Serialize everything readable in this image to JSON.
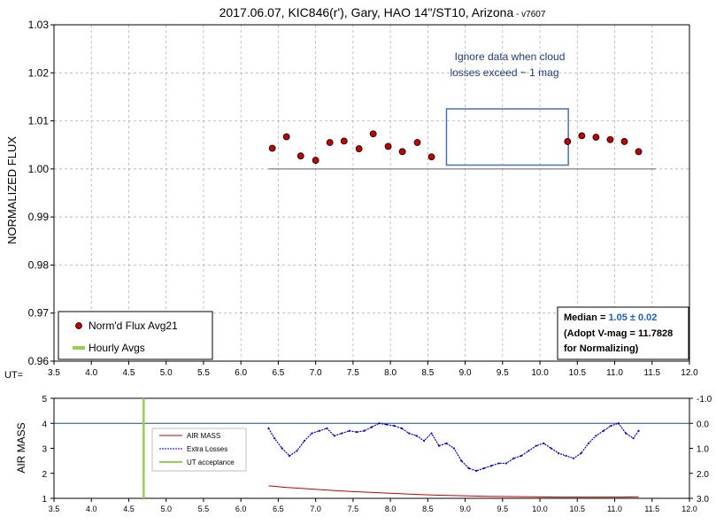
{
  "chart_data": [
    {
      "type": "scatter",
      "title": "2017.06.07, KIC846(r'), Gary, HAO 14\"/ST10, Arizona",
      "title_suffix": " - v7607",
      "ylabel": "NORMALIZED FLUX",
      "xlabel_prefix": "UT=",
      "xlim": [
        3.5,
        12.0
      ],
      "ylim": [
        0.96,
        1.03
      ],
      "x_ticks": [
        "3.5",
        "4.0",
        "4.5",
        "5.0",
        "5.5",
        "6.0",
        "6.5",
        "7.0",
        "7.5",
        "8.0",
        "8.5",
        "9.0",
        "9.5",
        "10.0",
        "10.5",
        "11.0",
        "11.5",
        "12.0"
      ],
      "y_ticks": [
        "0.96",
        "0.97",
        "0.98",
        "0.99",
        "1.00",
        "1.01",
        "1.02",
        "1.03"
      ],
      "grid": true,
      "reference_line": 1.0,
      "series": [
        {
          "name": "Norm'd Flux Avg21",
          "color": "#c00000",
          "x": [
            6.42,
            6.61,
            6.8,
            7.0,
            7.19,
            7.38,
            7.58,
            7.77,
            7.97,
            8.16,
            8.36,
            8.55,
            10.37,
            10.56,
            10.75,
            10.94,
            11.13,
            11.32
          ],
          "y": [
            1.0043,
            1.0067,
            1.0027,
            1.0018,
            1.0055,
            1.0058,
            1.0042,
            1.0073,
            1.0047,
            1.0036,
            1.0055,
            1.0025,
            1.0057,
            1.0069,
            1.0066,
            1.0061,
            1.0057,
            1.0036
          ]
        },
        {
          "name": "Hourly Avgs",
          "color": "#92d050",
          "x": [],
          "y": []
        }
      ],
      "legend": "bottom-left",
      "annotation": {
        "line1": "Ignore data when cloud",
        "line2": "losses exceed ~ 1 mag",
        "box_x": [
          8.75,
          10.38
        ],
        "box_y": [
          1.0008,
          1.0125
        ]
      },
      "info_box": {
        "median_label": "Median = ",
        "median_value": "1.05 ± 0.02",
        "line2": "(Adopt V-mag = 11.7828",
        "line3": " for Normalizing)"
      }
    },
    {
      "type": "line",
      "ylabel": "AIR MASS",
      "xlim": [
        3.5,
        12.0
      ],
      "ylim": [
        1,
        5
      ],
      "y2lim": [
        3.0,
        -1.0
      ],
      "x_ticks": [
        "3.5",
        "4.0",
        "4.5",
        "5.0",
        "5.5",
        "6.0",
        "6.5",
        "7.0",
        "7.5",
        "8.0",
        "8.5",
        "9.0",
        "9.5",
        "10.0",
        "10.5",
        "11.0",
        "11.5",
        "12.0"
      ],
      "y_ticks": [
        "1",
        "2",
        "3",
        "4",
        "5"
      ],
      "y2_ticks": [
        "3.0",
        "2.0",
        "1.0",
        "0.0",
        "-1.0"
      ],
      "reference_line_y2": 0.0,
      "legend": "top-left",
      "series": [
        {
          "name": "AIR MASS",
          "color": "#c00000",
          "x": [
            6.37,
            6.6,
            6.9,
            7.2,
            7.5,
            7.8,
            8.1,
            8.4,
            8.7,
            9.0,
            9.3,
            9.6,
            9.9,
            10.2,
            10.5,
            10.8,
            11.1,
            11.32
          ],
          "y": [
            1.5,
            1.44,
            1.38,
            1.32,
            1.27,
            1.23,
            1.19,
            1.15,
            1.12,
            1.1,
            1.08,
            1.07,
            1.06,
            1.05,
            1.05,
            1.05,
            1.05,
            1.06
          ]
        },
        {
          "name": "Extra Losses",
          "color": "#0000cc",
          "x": [
            6.37,
            6.45,
            6.55,
            6.65,
            6.75,
            6.85,
            6.95,
            7.05,
            7.15,
            7.25,
            7.35,
            7.45,
            7.55,
            7.65,
            7.75,
            7.85,
            7.95,
            8.05,
            8.15,
            8.25,
            8.35,
            8.45,
            8.55,
            8.65,
            8.75,
            8.85,
            8.95,
            9.05,
            9.15,
            9.25,
            9.35,
            9.45,
            9.55,
            9.65,
            9.75,
            9.85,
            9.95,
            10.05,
            10.15,
            10.25,
            10.35,
            10.45,
            10.55,
            10.65,
            10.75,
            10.85,
            10.95,
            11.05,
            11.15,
            11.25,
            11.32
          ],
          "y": [
            0.2,
            0.6,
            1.0,
            1.3,
            1.1,
            0.7,
            0.4,
            0.3,
            0.2,
            0.5,
            0.4,
            0.3,
            0.35,
            0.3,
            0.15,
            0.0,
            0.05,
            0.1,
            0.2,
            0.4,
            0.5,
            0.7,
            0.4,
            0.9,
            0.8,
            1.0,
            1.5,
            1.8,
            1.9,
            1.8,
            1.7,
            1.6,
            1.6,
            1.4,
            1.3,
            1.1,
            0.9,
            0.8,
            1.0,
            1.2,
            1.3,
            1.4,
            1.2,
            0.8,
            0.5,
            0.3,
            0.1,
            0.0,
            0.4,
            0.6,
            0.3
          ]
        },
        {
          "name": "UT acceptance",
          "color": "#92d050",
          "x": [
            4.7,
            4.7
          ],
          "y": [
            1,
            5
          ]
        }
      ]
    }
  ]
}
